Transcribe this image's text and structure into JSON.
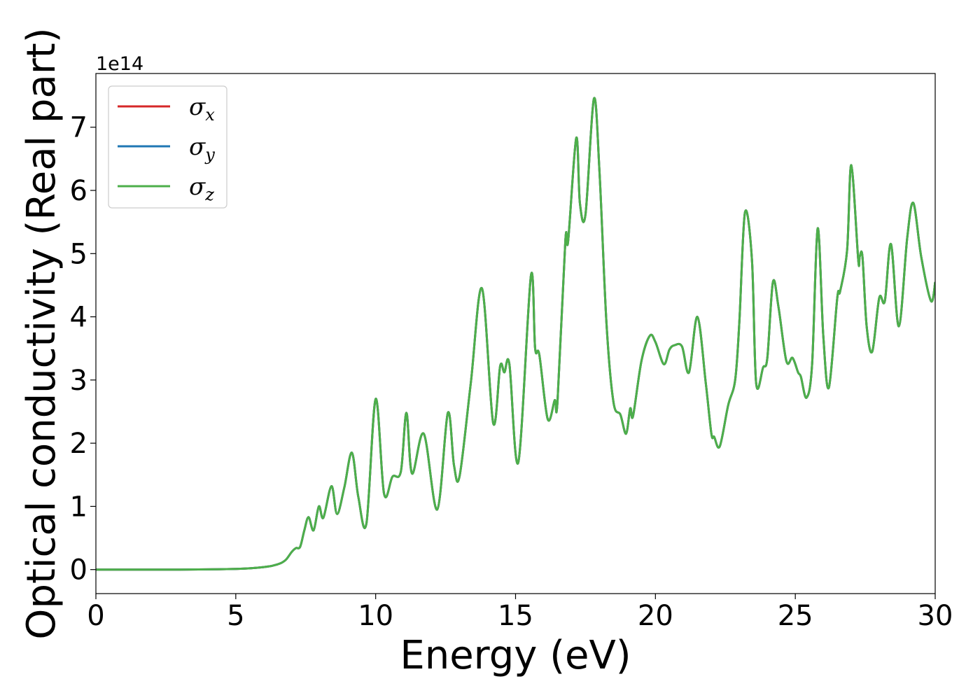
{
  "chart_data": {
    "type": "line",
    "title": "",
    "xlabel": "Energy (eV)",
    "ylabel": "Optical conductivity (Real part)",
    "y_offset_label": "1e14",
    "xlim": [
      0,
      30
    ],
    "ylim": [
      -0.38,
      7.85
    ],
    "xticks": [
      0,
      5,
      10,
      15,
      20,
      25,
      30
    ],
    "yticks": [
      0,
      1,
      2,
      3,
      4,
      5,
      6,
      7
    ],
    "grid": false,
    "legend_position": "top-left",
    "series": [
      {
        "name": "σx",
        "symbol": "σ",
        "subscript": "x",
        "color": "#d62728",
        "values_same_as": "σz"
      },
      {
        "name": "σy",
        "symbol": "σ",
        "subscript": "y",
        "color": "#1f77b4",
        "values_same_as": "σz"
      },
      {
        "name": "σz",
        "symbol": "σ",
        "subscript": "z",
        "color": "#4daf4a",
        "x": [
          0,
          1,
          2,
          3,
          4,
          5,
          5.5,
          6,
          6.3,
          6.6,
          6.8,
          7.0,
          7.15,
          7.3,
          7.45,
          7.6,
          7.78,
          7.97,
          8.13,
          8.42,
          8.62,
          8.88,
          9.15,
          9.38,
          9.67,
          10.0,
          10.3,
          10.6,
          10.9,
          11.1,
          11.3,
          11.72,
          12.2,
          12.58,
          12.8,
          13.0,
          13.4,
          13.8,
          14.2,
          14.45,
          14.6,
          14.78,
          15.1,
          15.55,
          15.7,
          15.85,
          16.15,
          16.4,
          16.5,
          16.78,
          16.88,
          17.17,
          17.3,
          17.5,
          17.8,
          18.0,
          18.25,
          18.5,
          18.75,
          18.95,
          19.1,
          19.2,
          19.5,
          19.8,
          20.0,
          20.3,
          20.5,
          20.68,
          20.95,
          21.2,
          21.5,
          21.8,
          22.0,
          22.1,
          22.3,
          22.6,
          22.85,
          23.0,
          23.2,
          23.45,
          23.6,
          23.85,
          24.0,
          24.2,
          24.4,
          24.68,
          24.9,
          25.1,
          25.2,
          25.4,
          25.6,
          25.8,
          26.0,
          26.2,
          26.5,
          26.6,
          26.85,
          27.0,
          27.25,
          27.3,
          27.4,
          27.55,
          27.75,
          28.0,
          28.2,
          28.42,
          28.7,
          29.0,
          29.22,
          29.5,
          29.85,
          30.0
        ],
        "values": [
          0,
          0,
          0,
          0,
          0.003,
          0.01,
          0.02,
          0.04,
          0.06,
          0.1,
          0.16,
          0.28,
          0.34,
          0.36,
          0.62,
          0.83,
          0.62,
          1.0,
          0.82,
          1.32,
          0.88,
          1.3,
          1.85,
          1.15,
          0.73,
          2.7,
          1.2,
          1.47,
          1.55,
          2.48,
          1.52,
          2.15,
          0.95,
          2.48,
          1.65,
          1.48,
          2.95,
          4.45,
          2.32,
          3.22,
          3.12,
          3.25,
          1.7,
          4.65,
          3.5,
          3.4,
          2.38,
          2.68,
          2.66,
          5.2,
          5.2,
          6.83,
          5.8,
          5.62,
          7.45,
          6.3,
          3.9,
          2.65,
          2.45,
          2.15,
          2.55,
          2.43,
          3.3,
          3.7,
          3.6,
          3.25,
          3.48,
          3.55,
          3.53,
          3.12,
          4.0,
          2.95,
          2.15,
          2.1,
          1.95,
          2.6,
          3.0,
          3.92,
          5.65,
          4.9,
          2.95,
          3.2,
          3.35,
          4.55,
          4.15,
          3.3,
          3.35,
          3.12,
          3.05,
          2.72,
          3.25,
          5.4,
          3.7,
          2.88,
          4.3,
          4.4,
          5.05,
          6.4,
          4.9,
          4.95,
          4.95,
          3.85,
          3.45,
          4.3,
          4.25,
          5.15,
          3.85,
          5.25,
          5.8,
          4.95,
          4.25,
          4.55
        ]
      }
    ]
  }
}
